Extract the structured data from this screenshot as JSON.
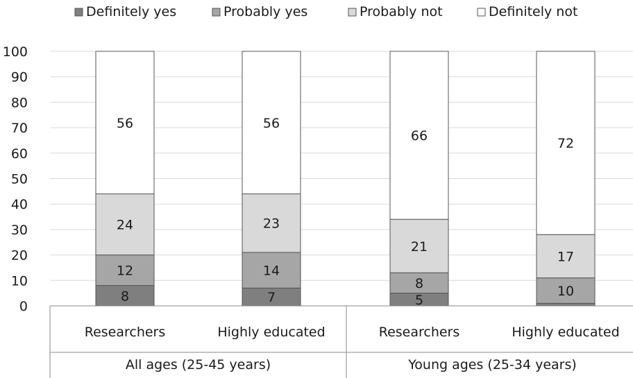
{
  "chart_data": {
    "type": "bar",
    "stacked": true,
    "title": "",
    "xlabel": "",
    "ylabel": "",
    "ylim": [
      0,
      100
    ],
    "yticks": [
      0,
      10,
      20,
      30,
      40,
      50,
      60,
      70,
      80,
      90,
      100
    ],
    "grid": true,
    "legend_position": "top",
    "groups": [
      {
        "label": "All ages (25-45 years)",
        "categories": [
          "Researchers",
          "Highly educated"
        ]
      },
      {
        "label": "Young ages (25-34 years)",
        "categories": [
          "Researchers",
          "Highly educated"
        ]
      }
    ],
    "categories": [
      "Researchers",
      "Highly educated",
      "Researchers",
      "Highly educated"
    ],
    "series": [
      {
        "name": "Definitely yes",
        "color": "#7f7f7f",
        "values": [
          8,
          7,
          5,
          1
        ],
        "labels": [
          "8",
          "7",
          "5",
          ""
        ]
      },
      {
        "name": "Probably yes",
        "color": "#a6a6a6",
        "values": [
          12,
          14,
          8,
          10
        ],
        "labels": [
          "12",
          "14",
          "8",
          "10"
        ]
      },
      {
        "name": "Probably not",
        "color": "#d9d9d9",
        "values": [
          24,
          23,
          21,
          17
        ],
        "labels": [
          "24",
          "23",
          "21",
          "17"
        ]
      },
      {
        "name": "Definitely not",
        "color": "#ffffff",
        "values": [
          56,
          56,
          66,
          72
        ],
        "labels": [
          "56",
          "56",
          "66",
          "72"
        ]
      }
    ]
  }
}
